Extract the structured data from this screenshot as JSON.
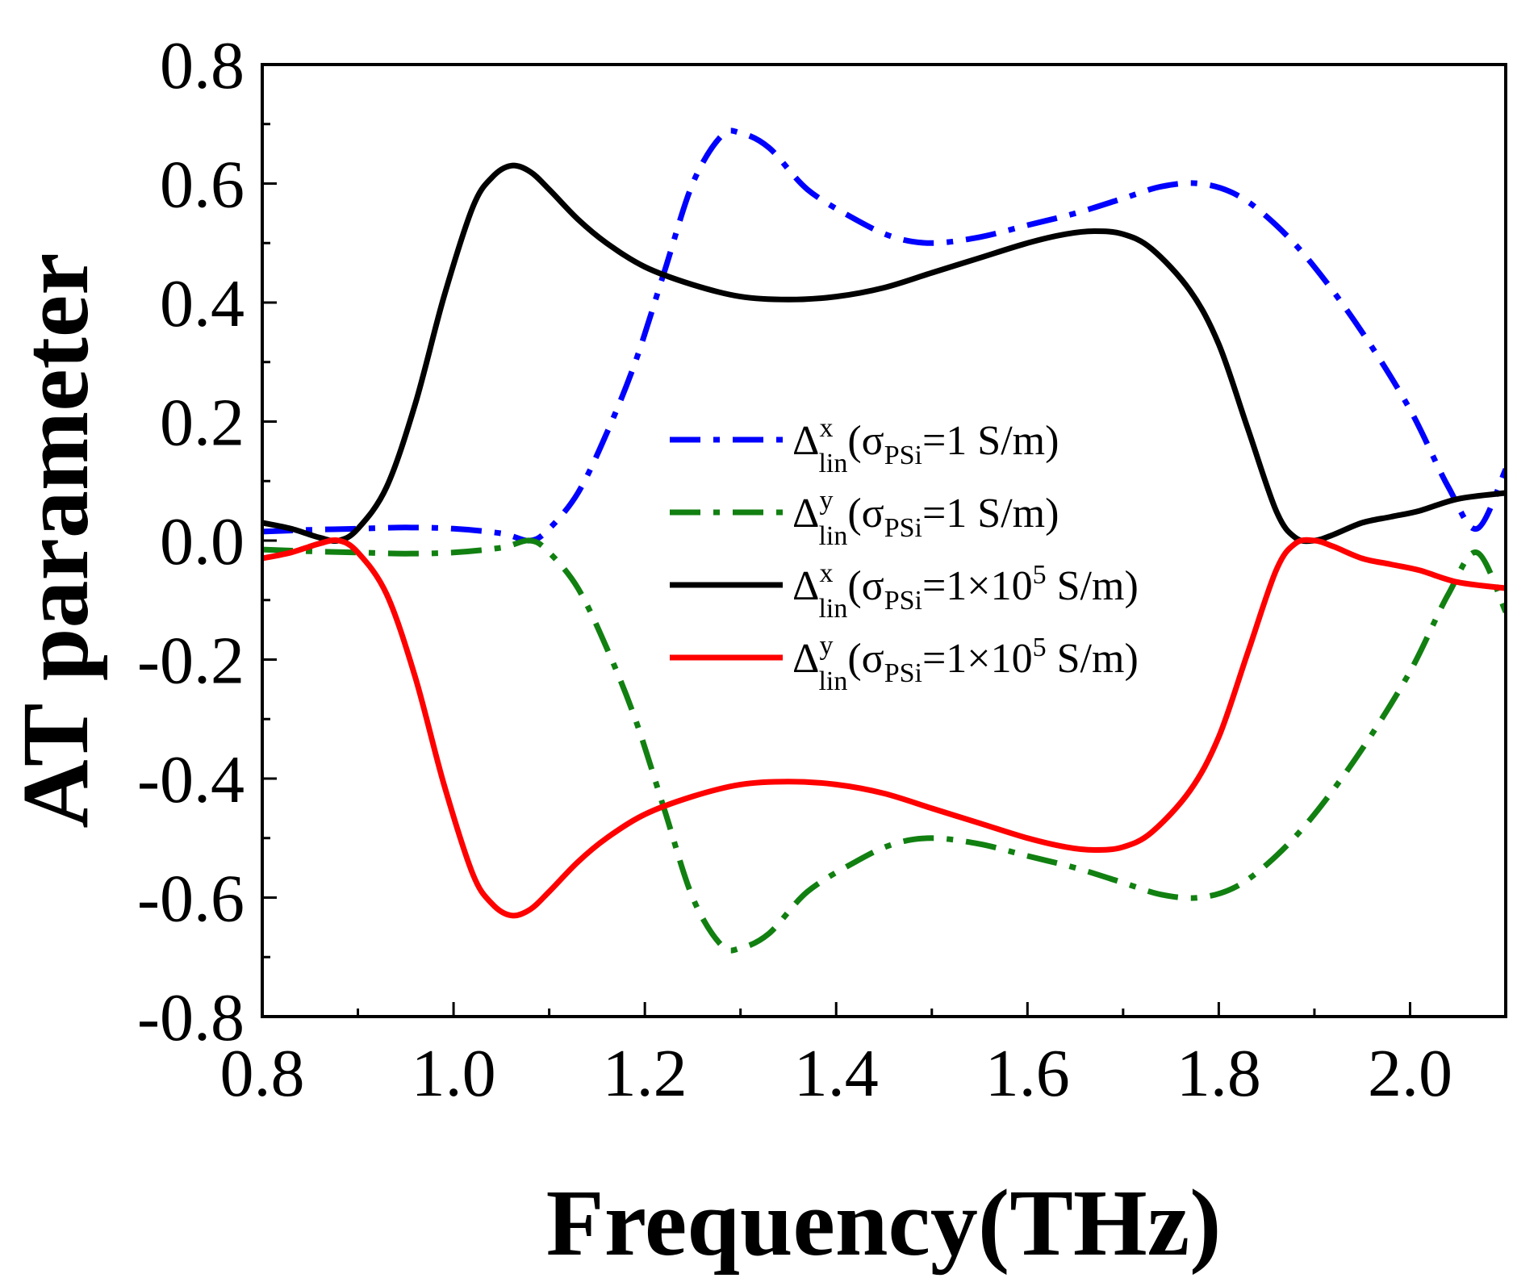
{
  "chart_data": {
    "type": "line",
    "xlabel": "Frequency(THz)",
    "ylabel": "AT parameter",
    "xlim": [
      0.8,
      2.1
    ],
    "ylim": [
      -0.8,
      0.8
    ],
    "xticks": [
      "0.8",
      "1.0",
      "1.2",
      "1.4",
      "1.6",
      "1.8",
      "2.0"
    ],
    "yticks": [
      "-0.8",
      "-0.6",
      "-0.4",
      "-0.2",
      "0.0",
      "0.2",
      "0.4",
      "0.6",
      "0.8"
    ],
    "legend_position": "center",
    "series": [
      {
        "name": "Δx_lin(σPSi=1 S/m)",
        "legend": {
          "base": "Δ",
          "sup": "x",
          "sub": "lin",
          "sigma": "(σ",
          "sigma_sub": "PSi",
          "rest": "=1 S/m)"
        },
        "color": "#0000ff",
        "style": "dashdot",
        "x": [
          0.8,
          0.85,
          0.9,
          0.95,
          1.0,
          1.05,
          1.08,
          1.1,
          1.13,
          1.16,
          1.19,
          1.22,
          1.25,
          1.28,
          1.3,
          1.33,
          1.37,
          1.42,
          1.46,
          1.5,
          1.55,
          1.6,
          1.65,
          1.7,
          1.74,
          1.78,
          1.82,
          1.86,
          1.9,
          1.95,
          2.0,
          2.04,
          2.07,
          2.1
        ],
        "y": [
          0.015,
          0.018,
          0.02,
          0.022,
          0.02,
          0.012,
          0.0,
          0.02,
          0.08,
          0.18,
          0.3,
          0.45,
          0.6,
          0.68,
          0.685,
          0.66,
          0.59,
          0.54,
          0.51,
          0.5,
          0.51,
          0.53,
          0.55,
          0.575,
          0.595,
          0.6,
          0.58,
          0.53,
          0.46,
          0.35,
          0.22,
          0.09,
          0.02,
          0.12
        ]
      },
      {
        "name": "Δy_lin(σPSi=1 S/m)",
        "legend": {
          "base": "Δ",
          "sup": "y",
          "sub": "lin",
          "sigma": "(σ",
          "sigma_sub": "PSi",
          "rest": "=1 S/m)"
        },
        "color": "#118011",
        "style": "dashdot",
        "x": [
          0.8,
          0.85,
          0.9,
          0.95,
          1.0,
          1.05,
          1.08,
          1.1,
          1.13,
          1.16,
          1.19,
          1.22,
          1.25,
          1.28,
          1.3,
          1.33,
          1.37,
          1.42,
          1.46,
          1.5,
          1.55,
          1.6,
          1.65,
          1.7,
          1.74,
          1.78,
          1.82,
          1.86,
          1.9,
          1.95,
          2.0,
          2.04,
          2.07,
          2.1
        ],
        "y": [
          -0.015,
          -0.018,
          -0.02,
          -0.022,
          -0.02,
          -0.012,
          0.0,
          -0.02,
          -0.08,
          -0.18,
          -0.3,
          -0.45,
          -0.6,
          -0.68,
          -0.685,
          -0.66,
          -0.59,
          -0.54,
          -0.51,
          -0.5,
          -0.51,
          -0.53,
          -0.55,
          -0.575,
          -0.595,
          -0.6,
          -0.58,
          -0.53,
          -0.46,
          -0.35,
          -0.22,
          -0.09,
          -0.02,
          -0.12
        ]
      },
      {
        "name": "Δx_lin(σPSi=1×10^5 S/m)",
        "legend": {
          "base": "Δ",
          "sup": "x",
          "sub": "lin",
          "sigma": "(σ",
          "sigma_sub": "PSi",
          "rest": "=1×10",
          "rest_sup": "5",
          "rest_end": " S/m)"
        },
        "color": "#000000",
        "style": "solid",
        "x": [
          0.8,
          0.83,
          0.86,
          0.88,
          0.9,
          0.93,
          0.96,
          0.99,
          1.02,
          1.04,
          1.06,
          1.08,
          1.1,
          1.13,
          1.16,
          1.2,
          1.25,
          1.3,
          1.35,
          1.4,
          1.45,
          1.5,
          1.55,
          1.6,
          1.64,
          1.67,
          1.7,
          1.73,
          1.77,
          1.8,
          1.83,
          1.86,
          1.88,
          1.9,
          1.92,
          1.95,
          1.98,
          2.01,
          2.05,
          2.1
        ],
        "y": [
          0.03,
          0.02,
          0.005,
          0.0,
          0.02,
          0.09,
          0.23,
          0.41,
          0.56,
          0.61,
          0.63,
          0.62,
          0.59,
          0.54,
          0.5,
          0.46,
          0.43,
          0.41,
          0.405,
          0.41,
          0.425,
          0.45,
          0.475,
          0.5,
          0.515,
          0.52,
          0.515,
          0.49,
          0.42,
          0.33,
          0.19,
          0.05,
          0.005,
          0.0,
          0.01,
          0.03,
          0.04,
          0.05,
          0.07,
          0.08
        ]
      },
      {
        "name": "Δy_lin(σPSi=1×10^5 S/m)",
        "legend": {
          "base": "Δ",
          "sup": "y",
          "sub": "lin",
          "sigma": "(σ",
          "sigma_sub": "PSi",
          "rest": "=1×10",
          "rest_sup": "5",
          "rest_end": " S/m)"
        },
        "color": "#ff0000",
        "style": "solid",
        "x": [
          0.8,
          0.83,
          0.86,
          0.88,
          0.9,
          0.93,
          0.96,
          0.99,
          1.02,
          1.04,
          1.06,
          1.08,
          1.1,
          1.13,
          1.16,
          1.2,
          1.25,
          1.3,
          1.35,
          1.4,
          1.45,
          1.5,
          1.55,
          1.6,
          1.64,
          1.67,
          1.7,
          1.73,
          1.77,
          1.8,
          1.83,
          1.86,
          1.88,
          1.9,
          1.92,
          1.95,
          1.98,
          2.01,
          2.05,
          2.1
        ],
        "y": [
          -0.03,
          -0.02,
          -0.005,
          0.0,
          -0.02,
          -0.09,
          -0.23,
          -0.41,
          -0.56,
          -0.61,
          -0.63,
          -0.62,
          -0.59,
          -0.54,
          -0.5,
          -0.46,
          -0.43,
          -0.41,
          -0.405,
          -0.41,
          -0.425,
          -0.45,
          -0.475,
          -0.5,
          -0.515,
          -0.52,
          -0.515,
          -0.49,
          -0.42,
          -0.33,
          -0.19,
          -0.05,
          -0.005,
          0.0,
          -0.01,
          -0.03,
          -0.04,
          -0.05,
          -0.07,
          -0.08
        ]
      }
    ]
  }
}
